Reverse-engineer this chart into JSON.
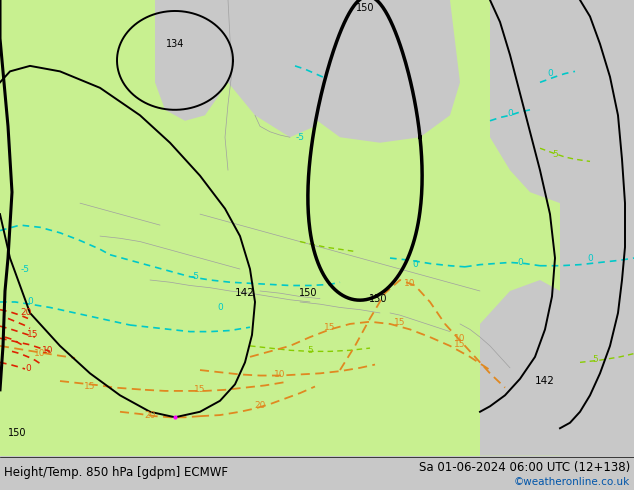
{
  "title_left": "Height/Temp. 850 hPa [gdpm] ECMWF",
  "title_right": "Sa 01-06-2024 06:00 UTC (12+138)",
  "watermark": "©weatheronline.co.uk",
  "bg_color": "#c8c8c8",
  "fig_width": 6.34,
  "fig_height": 4.9,
  "dpi": 100,
  "title_fontsize": 8.5,
  "watermark_color": "#0055aa",
  "watermark_fontsize": 7.5,
  "land_green": "#c8f090",
  "land_green2": "#b0e878",
  "sea_color": "#c8c8c8",
  "black": "#000000",
  "cyan": "#00c8c8",
  "orange": "#e08820",
  "red": "#dd2200",
  "lime": "#88cc00",
  "pink": "#ff00ff"
}
